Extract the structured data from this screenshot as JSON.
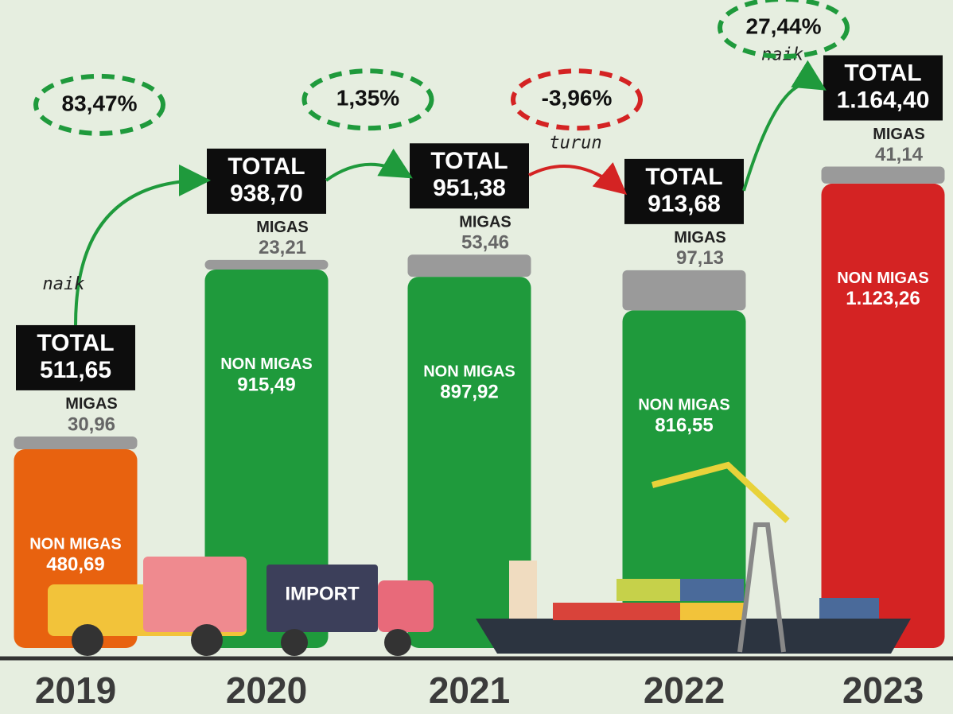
{
  "chart_data": {
    "type": "bar",
    "stacked": true,
    "categories": [
      "2019",
      "2020",
      "2021",
      "2022",
      "2023"
    ],
    "colors": [
      "#e8620f",
      "#1f9a3c",
      "#1f9a3c",
      "#1f9a3c",
      "#d42323"
    ],
    "series": [
      {
        "name": "NON MIGAS",
        "values": [
          480.69,
          915.49,
          897.92,
          816.55,
          1123.26
        ],
        "value_labels": [
          "480,69",
          "915,49",
          "897,92",
          "816,55",
          "1.123,26"
        ]
      },
      {
        "name": "MIGAS",
        "color": "#9a9a9a",
        "values": [
          30.96,
          23.21,
          53.46,
          97.13,
          41.14
        ],
        "value_labels": [
          "30,96",
          "23,21",
          "53,46",
          "97,13",
          "41,14"
        ]
      }
    ],
    "totals": {
      "label": "TOTAL",
      "values": [
        511.65,
        938.7,
        951.38,
        913.68,
        1164.4
      ],
      "value_labels": [
        "511,65",
        "938,70",
        "951,38",
        "913,68",
        "1.164,40"
      ]
    },
    "changes": {
      "values": [
        83.47,
        1.35,
        -3.96,
        27.44
      ],
      "value_labels": [
        "83,47%",
        "1,35%",
        "-3,96%",
        "27,44%"
      ],
      "direction_labels": [
        "naik",
        null,
        "turun",
        "naik"
      ]
    },
    "truck_label": "IMPORT"
  }
}
